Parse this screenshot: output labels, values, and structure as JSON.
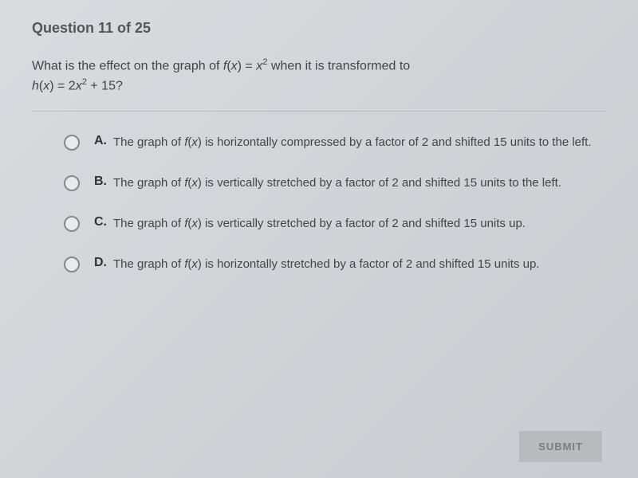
{
  "header": {
    "question_label": "Question 11 of 25"
  },
  "question": {
    "line1_pre": "What is the effect on the graph of ",
    "fx": "f",
    "x_var": "x",
    "eq1_mid": "(",
    "eq1_close": ") = ",
    "x_sq_base": "x",
    "x_sq_exp": "2",
    "line1_post": " when it is transformed to",
    "hx": "h",
    "eq2_mid": "(",
    "eq2_close": ") = 2",
    "plus15": " + 15?"
  },
  "options": [
    {
      "letter": "A.",
      "pre": "The graph of ",
      "fx": "f",
      "x_var": "x",
      "post": ") is horizontally compressed by a factor of 2 and shifted 15 units to the left."
    },
    {
      "letter": "B.",
      "pre": "The graph of ",
      "fx": "f",
      "x_var": "x",
      "post": ") is vertically stretched by a factor of 2 and shifted 15 units to the left."
    },
    {
      "letter": "C.",
      "pre": "The graph of ",
      "fx": "f",
      "x_var": "x",
      "post": ") is vertically stretched by a factor of 2 and shifted 15 units up."
    },
    {
      "letter": "D.",
      "pre": "The graph of ",
      "fx": "f",
      "x_var": "x",
      "post": ") is horizontally stretched by a factor of 2 and shifted 15 units up."
    }
  ],
  "submit": {
    "label": "SUBMIT"
  },
  "styles": {
    "background_color": "#d8dcdf",
    "text_color": "#444",
    "header_color": "#555",
    "radio_border": "#888",
    "submit_bg": "#b8bbbe",
    "submit_fg": "#7a7d80",
    "divider_color": "#bbb"
  }
}
